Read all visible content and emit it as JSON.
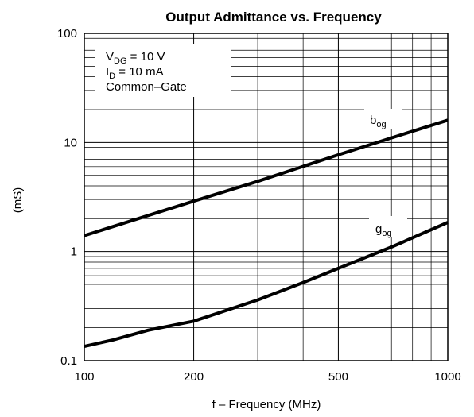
{
  "chart_data": {
    "type": "line",
    "title": "Output Admittance  vs. Frequency",
    "xlabel": "f – Frequency (MHz)",
    "ylabel": "(mS)",
    "xscale": "log",
    "yscale": "log",
    "xlim": [
      100,
      1000
    ],
    "ylim": [
      0.1,
      100
    ],
    "grid": true,
    "x_ticks": [
      {
        "value": 100,
        "label": "100"
      },
      {
        "value": 200,
        "label": "200"
      },
      {
        "value": 500,
        "label": "500"
      },
      {
        "value": 1000,
        "label": "1000"
      }
    ],
    "y_ticks": [
      {
        "value": 0.1,
        "label": "0.1"
      },
      {
        "value": 1,
        "label": "1"
      },
      {
        "value": 10,
        "label": "10"
      },
      {
        "value": 100,
        "label": "100"
      }
    ],
    "conditions_box": {
      "placement": "top-left",
      "lines": [
        {
          "main": "V",
          "sub": "DG",
          "rest": " = 10 V"
        },
        {
          "main": "I",
          "sub": "D",
          "rest": " = 10 mA"
        },
        {
          "main": "Common–Gate",
          "sub": "",
          "rest": ""
        }
      ]
    },
    "series": [
      {
        "name": "b",
        "name_sub": "og",
        "x": [
          100,
          200,
          300,
          500,
          700,
          1000
        ],
        "y": [
          1.4,
          2.9,
          4.4,
          7.7,
          11.0,
          16.0
        ]
      },
      {
        "name": "g",
        "name_sub": "og",
        "x": [
          100,
          120,
          150,
          200,
          300,
          400,
          500,
          700,
          1000
        ],
        "y": [
          0.135,
          0.155,
          0.19,
          0.23,
          0.36,
          0.52,
          0.7,
          1.1,
          1.85
        ]
      }
    ]
  }
}
